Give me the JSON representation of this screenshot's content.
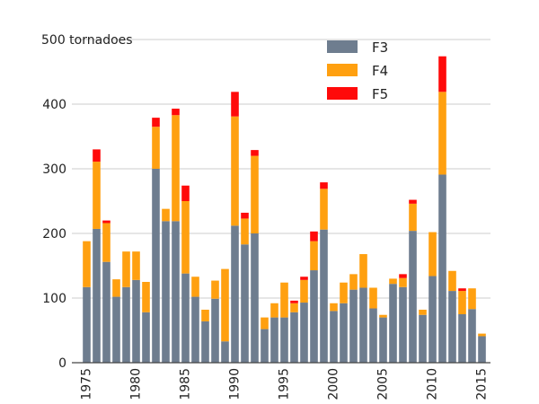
{
  "chart_data": {
    "type": "bar",
    "stacked": true,
    "title": "",
    "xlabel": "",
    "ylabel": "",
    "y_unit_label": "tornadoes",
    "ylim": [
      0,
      500
    ],
    "yticks": [
      0,
      100,
      200,
      300,
      400,
      500
    ],
    "xticks": [
      1975,
      1980,
      1985,
      1990,
      1995,
      2000,
      2005,
      2010,
      2015
    ],
    "grid": true,
    "legend_position": "top-right",
    "categories": [
      1975,
      1976,
      1977,
      1978,
      1979,
      1980,
      1981,
      1982,
      1983,
      1984,
      1985,
      1986,
      1987,
      1988,
      1989,
      1990,
      1991,
      1992,
      1993,
      1994,
      1995,
      1996,
      1997,
      1998,
      1999,
      2000,
      2001,
      2002,
      2003,
      2004,
      2005,
      2006,
      2007,
      2008,
      2009,
      2010,
      2011,
      2012,
      2013,
      2014,
      2015
    ],
    "series": [
      {
        "name": "F3",
        "color": "#6e7d8f",
        "values": [
          117,
          207,
          156,
          102,
          117,
          128,
          78,
          300,
          219,
          219,
          138,
          102,
          64,
          99,
          33,
          212,
          183,
          200,
          52,
          70,
          70,
          78,
          93,
          143,
          206,
          80,
          92,
          113,
          116,
          84,
          70,
          122,
          117,
          204,
          74,
          134,
          291,
          111,
          75,
          83,
          41
        ]
      },
      {
        "name": "F4",
        "color": "#ffa010",
        "values": [
          71,
          104,
          60,
          27,
          55,
          44,
          47,
          65,
          19,
          164,
          112,
          31,
          18,
          28,
          112,
          169,
          40,
          120,
          18,
          22,
          54,
          14,
          35,
          45,
          63,
          12,
          32,
          24,
          52,
          32,
          4,
          8,
          14,
          42,
          8,
          68,
          128,
          31,
          36,
          32,
          4
        ]
      },
      {
        "name": "F5",
        "color": "#ff0a0a",
        "values": [
          0,
          19,
          4,
          0,
          0,
          0,
          0,
          14,
          0,
          10,
          24,
          0,
          0,
          0,
          0,
          38,
          9,
          9,
          0,
          0,
          0,
          4,
          5,
          15,
          10,
          0,
          0,
          0,
          0,
          0,
          0,
          0,
          6,
          6,
          0,
          0,
          55,
          0,
          4,
          0,
          0
        ]
      }
    ]
  }
}
